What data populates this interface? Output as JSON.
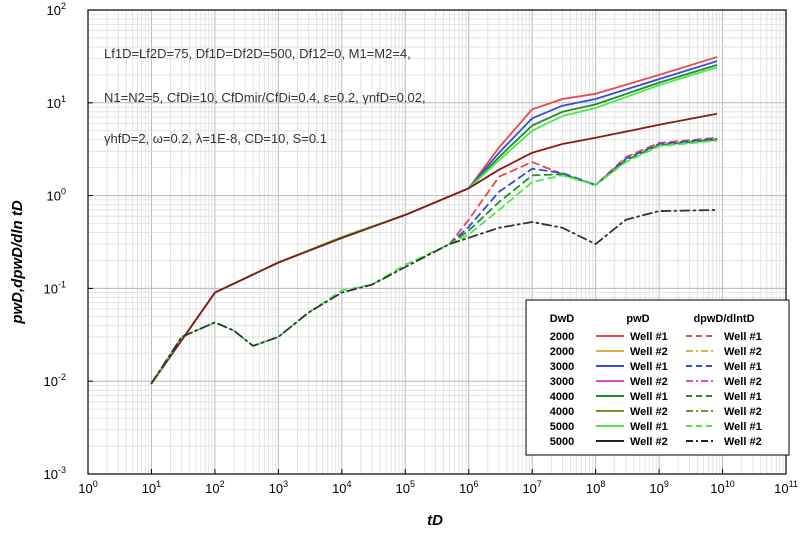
{
  "chart_data": {
    "type": "line",
    "xlabel": "tD",
    "ylabel": "pwD,dpwD/dln tD",
    "xscale": "log",
    "yscale": "log",
    "xlim": [
      1,
      100000000000.0
    ],
    "ylim": [
      0.001,
      100
    ],
    "grid": true,
    "legend_placement": "bottom-right",
    "x_ticks": [
      "10^0",
      "10^1",
      "10^2",
      "10^3",
      "10^4",
      "10^5",
      "10^6",
      "10^7",
      "10^8",
      "10^9",
      "10^10",
      "10^11"
    ],
    "y_ticks": [
      "10^-3",
      "10^-2",
      "10^-1",
      "10^0",
      "10^1",
      "10^2"
    ],
    "annotation_lines": [
      "Lf1D=Lf2D=75, Df1D=Df2D=500, Df12=0, M1=M2=4,",
      "N1=N2=5, CfDi=10, CfDmir/CfDi=0.4, ε=0.2, γnfD=0.02,",
      "γhfD=2, ω=0.2, λ=1E-8, CD=10, S=0.1"
    ],
    "legend": {
      "headers": [
        "DwD",
        "pwD",
        "dpwD/dlntD"
      ],
      "rows": [
        {
          "dwd": "2000",
          "p_label": "Well #1",
          "d_label": "Well #1",
          "color": "#e84a4a",
          "dash": "dash"
        },
        {
          "dwd": "2000",
          "p_label": "Well #2",
          "d_label": "Well #2",
          "color": "#d4b24a",
          "dash": "dashdot"
        },
        {
          "dwd": "3000",
          "p_label": "Well #1",
          "d_label": "Well #1",
          "color": "#3a4ad8",
          "dash": "dash"
        },
        {
          "dwd": "3000",
          "p_label": "Well #2",
          "d_label": "Well #2",
          "color": "#e04ad0",
          "dash": "dashdot"
        },
        {
          "dwd": "4000",
          "p_label": "Well #1",
          "d_label": "Well #1",
          "color": "#1f8f2a",
          "dash": "dash"
        },
        {
          "dwd": "4000",
          "p_label": "Well #2",
          "d_label": "Well #2",
          "color": "#8a8a2a",
          "dash": "dashdot"
        },
        {
          "dwd": "5000",
          "p_label": "Well #1",
          "d_label": "Well #1",
          "color": "#4ee84e",
          "dash": "dash"
        },
        {
          "dwd": "5000",
          "p_label": "Well #2",
          "d_label": "Well #2",
          "color": "#222222",
          "dash": "dashdot"
        }
      ]
    },
    "series": [
      {
        "kind": "pwD",
        "dwd": "2000",
        "well": "Well #1",
        "color": "#e84a4a",
        "style": "solid",
        "x": [
          10,
          100,
          1000,
          10000,
          100000,
          1000000,
          3000000,
          10000000,
          30000000,
          100000000,
          1000000000,
          8000000000
        ],
        "y": [
          0.0095,
          0.09,
          0.19,
          0.35,
          0.62,
          1.2,
          3.3,
          8.5,
          11,
          12.5,
          20,
          31
        ]
      },
      {
        "kind": "pwD",
        "dwd": "3000",
        "well": "Well #1",
        "color": "#3a4ad8",
        "style": "solid",
        "x": [
          10,
          100,
          1000,
          10000,
          100000,
          1000000,
          3000000,
          10000000,
          30000000,
          100000000,
          1000000000,
          8000000000
        ],
        "y": [
          0.0095,
          0.09,
          0.19,
          0.35,
          0.62,
          1.2,
          2.9,
          6.8,
          9.3,
          11,
          18,
          28
        ]
      },
      {
        "kind": "pwD",
        "dwd": "4000",
        "well": "Well #1",
        "color": "#1f8f2a",
        "style": "solid",
        "x": [
          10,
          100,
          1000,
          10000,
          100000,
          1000000,
          3000000,
          10000000,
          30000000,
          100000000,
          1000000000,
          8000000000
        ],
        "y": [
          0.0095,
          0.09,
          0.19,
          0.35,
          0.62,
          1.2,
          2.6,
          5.7,
          8.0,
          9.6,
          16.5,
          25.5
        ]
      },
      {
        "kind": "pwD",
        "dwd": "5000",
        "well": "Well #1",
        "color": "#4ee84e",
        "style": "solid",
        "x": [
          10,
          100,
          1000,
          10000,
          100000,
          1000000,
          3000000,
          10000000,
          30000000,
          100000000,
          1000000000,
          8000000000
        ],
        "y": [
          0.0095,
          0.09,
          0.19,
          0.36,
          0.62,
          1.2,
          2.4,
          5.0,
          7.2,
          8.8,
          15.5,
          24
        ]
      },
      {
        "kind": "pwD",
        "dwd": "5000",
        "well": "Well #2",
        "color": "#8a1a1a",
        "style": "solid",
        "x": [
          10,
          100,
          1000,
          10000,
          100000,
          1000000,
          3000000,
          10000000,
          30000000,
          100000000,
          1000000000,
          8000000000
        ],
        "y": [
          0.0095,
          0.09,
          0.19,
          0.35,
          0.62,
          1.2,
          1.9,
          2.9,
          3.6,
          4.2,
          5.8,
          7.6
        ]
      },
      {
        "kind": "dpwD",
        "dwd": "2000",
        "well": "Well #1",
        "color": "#e84a4a",
        "style": "dash",
        "x": [
          500000,
          1000000,
          3000000,
          10000000,
          30000000,
          100000000,
          300000000,
          1000000000,
          8000000000
        ],
        "y": [
          0.3,
          0.55,
          1.6,
          2.3,
          1.7,
          1.3,
          2.6,
          3.7,
          4.2
        ]
      },
      {
        "kind": "dpwD",
        "dwd": "3000",
        "well": "Well #1",
        "color": "#3a4ad8",
        "style": "dash",
        "x": [
          500000,
          1000000,
          3000000,
          10000000,
          30000000,
          100000000,
          300000000,
          1000000000,
          8000000000
        ],
        "y": [
          0.3,
          0.46,
          1.1,
          1.95,
          1.75,
          1.3,
          2.5,
          3.6,
          4.1
        ]
      },
      {
        "kind": "dpwD",
        "dwd": "4000",
        "well": "Well #1",
        "color": "#1f8f2a",
        "style": "dash",
        "x": [
          500000,
          1000000,
          3000000,
          10000000,
          30000000,
          100000000,
          300000000,
          1000000000,
          8000000000
        ],
        "y": [
          0.3,
          0.42,
          0.85,
          1.65,
          1.7,
          1.3,
          2.4,
          3.5,
          4.0
        ]
      },
      {
        "kind": "dpwD",
        "dwd": "5000",
        "well": "Well #1",
        "color": "#4ee84e",
        "style": "dash",
        "x": [
          500000,
          1000000,
          3000000,
          10000000,
          30000000,
          100000000,
          300000000,
          1000000000,
          8000000000
        ],
        "y": [
          0.3,
          0.38,
          0.7,
          1.4,
          1.65,
          1.3,
          2.3,
          3.4,
          3.9
        ]
      },
      {
        "kind": "dpwD",
        "dwd": "all",
        "well": "Well #1 early",
        "color": "#4ee84e",
        "style": "dash",
        "x": [
          10,
          30,
          100,
          200,
          400,
          1000,
          3000,
          10000,
          30000,
          100000,
          500000
        ],
        "y": [
          0.0095,
          0.03,
          0.043,
          0.035,
          0.024,
          0.03,
          0.055,
          0.095,
          0.11,
          0.18,
          0.3
        ]
      },
      {
        "kind": "dpwD",
        "dwd": "all",
        "well": "Well #2",
        "color": "#333333",
        "style": "dashdot",
        "x": [
          10,
          30,
          100,
          200,
          400,
          1000,
          3000,
          10000,
          30000,
          100000,
          500000,
          3000000,
          10000000,
          30000000,
          100000000,
          300000000,
          1000000000,
          8000000000
        ],
        "y": [
          0.0095,
          0.03,
          0.043,
          0.035,
          0.024,
          0.03,
          0.055,
          0.09,
          0.11,
          0.17,
          0.3,
          0.45,
          0.52,
          0.45,
          0.3,
          0.55,
          0.68,
          0.7
        ]
      }
    ]
  }
}
